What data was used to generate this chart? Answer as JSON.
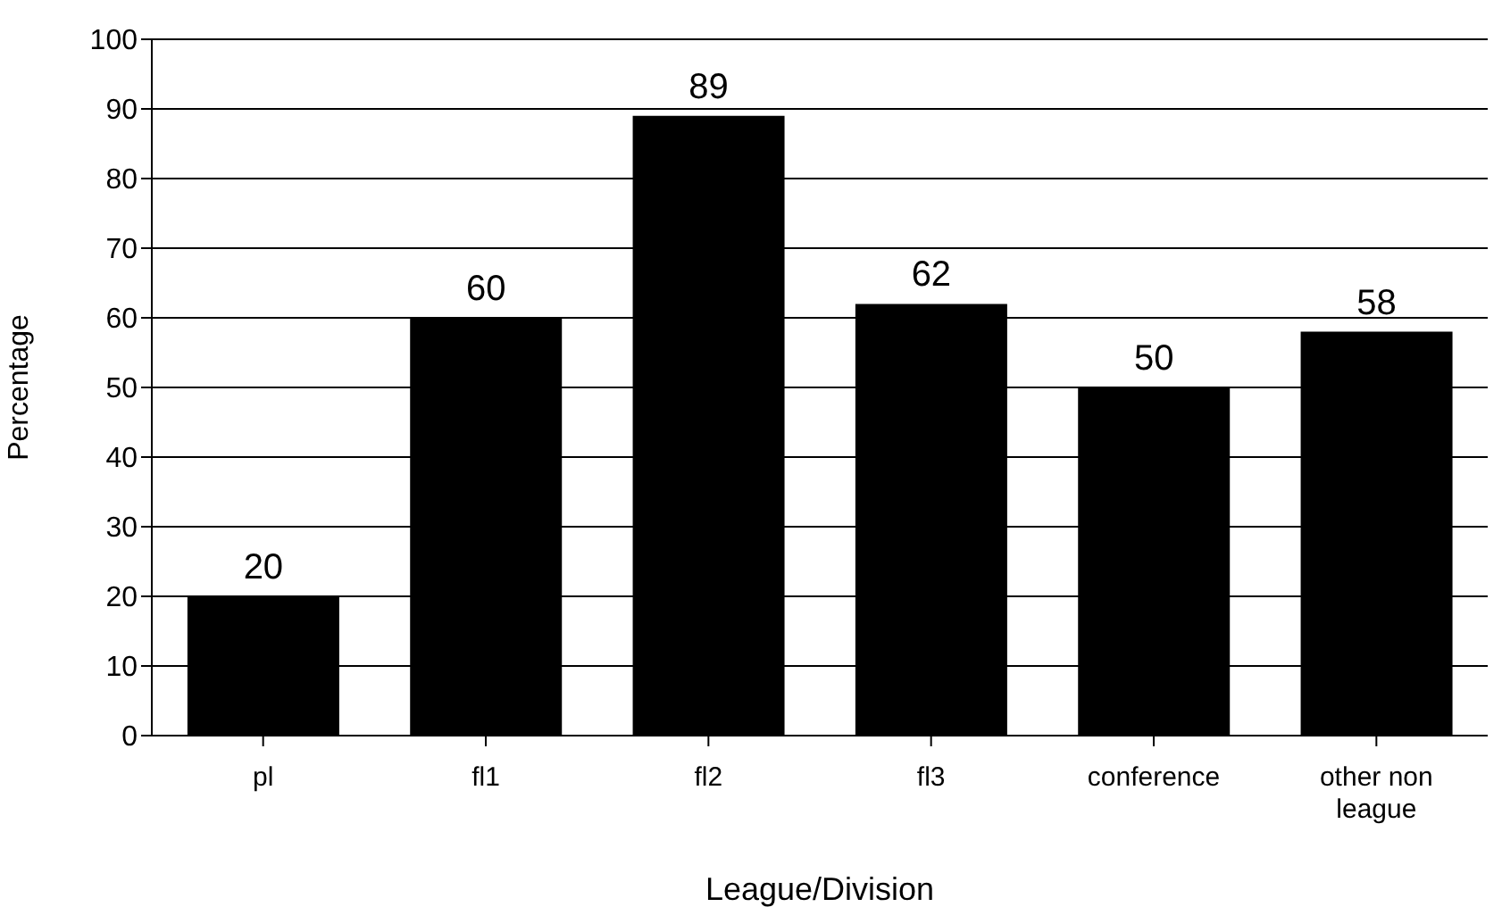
{
  "chart_data": {
    "type": "bar",
    "xlabel": "League/Division",
    "ylabel": "Percentage",
    "categories": [
      "pl",
      "fl1",
      "fl2",
      "fl3",
      "conference",
      "other non league"
    ],
    "values": [
      20,
      60,
      89,
      62,
      50,
      58
    ],
    "color": "#000000",
    "ylim": [
      0,
      100
    ],
    "yticks": [
      0,
      10,
      20,
      30,
      40,
      50,
      60,
      70,
      80,
      90,
      100
    ],
    "grid": "y",
    "data_labels": true
  }
}
